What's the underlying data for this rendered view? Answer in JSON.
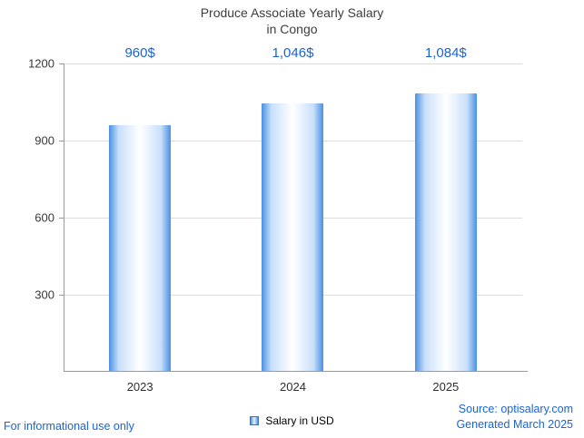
{
  "title": {
    "line1": "Produce Associate Yearly Salary",
    "line2": "in Congo"
  },
  "chart_data": {
    "type": "bar",
    "title": "Produce Associate Yearly Salary in Congo",
    "categories": [
      "2023",
      "2024",
      "2025"
    ],
    "values": [
      960,
      1046,
      1084
    ],
    "value_labels": [
      "960$",
      "1,046$",
      "1,084$"
    ],
    "xlabel": "",
    "ylabel": "",
    "ylim": [
      0,
      1200
    ],
    "yticks": [
      300,
      600,
      900,
      1200
    ],
    "grid": true,
    "legend_position": "bottom",
    "legend_label": "Salary in USD",
    "bar_edge_color": "#4a90e2"
  },
  "legend": {
    "label": "Salary in USD"
  },
  "footer": {
    "left": "For informational use only",
    "source": "Source: optisalary.com",
    "generated": "Generated March 2025"
  },
  "colors": {
    "accent": "#1a63d6",
    "grid": "#dcdcdc",
    "axis": "#9a9a9a"
  }
}
